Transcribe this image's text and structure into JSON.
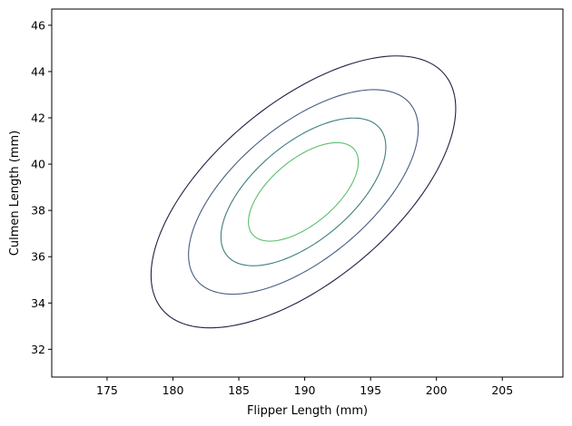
{
  "chart_data": {
    "type": "contour",
    "title": "",
    "xlabel": "Flipper Length (mm)",
    "ylabel": "Culmen Length (mm)",
    "xlim": [
      170.8,
      209.6
    ],
    "ylim": [
      30.8,
      46.7
    ],
    "xticks": [
      175,
      180,
      185,
      190,
      195,
      200,
      205
    ],
    "yticks": [
      32,
      34,
      36,
      38,
      40,
      42,
      44,
      46
    ],
    "grid": false,
    "legend": "none",
    "contours": [
      {
        "level": 1,
        "color": "#2b1d45",
        "center": [
          189.9,
          38.8
        ],
        "semi_major": 12.2,
        "semi_minor": 4.4,
        "angle_deg": 20
      },
      {
        "level": 2,
        "color": "#465d80",
        "center": [
          189.9,
          38.8
        ],
        "semi_major": 9.2,
        "semi_minor": 3.3,
        "angle_deg": 20
      },
      {
        "level": 3,
        "color": "#3e7e7f",
        "center": [
          189.9,
          38.8
        ],
        "semi_major": 6.6,
        "semi_minor": 2.4,
        "angle_deg": 20
      },
      {
        "level": 4,
        "color": "#5cbf70",
        "center": [
          189.9,
          38.8
        ],
        "semi_major": 4.4,
        "semi_minor": 1.6,
        "angle_deg": 20
      }
    ]
  }
}
